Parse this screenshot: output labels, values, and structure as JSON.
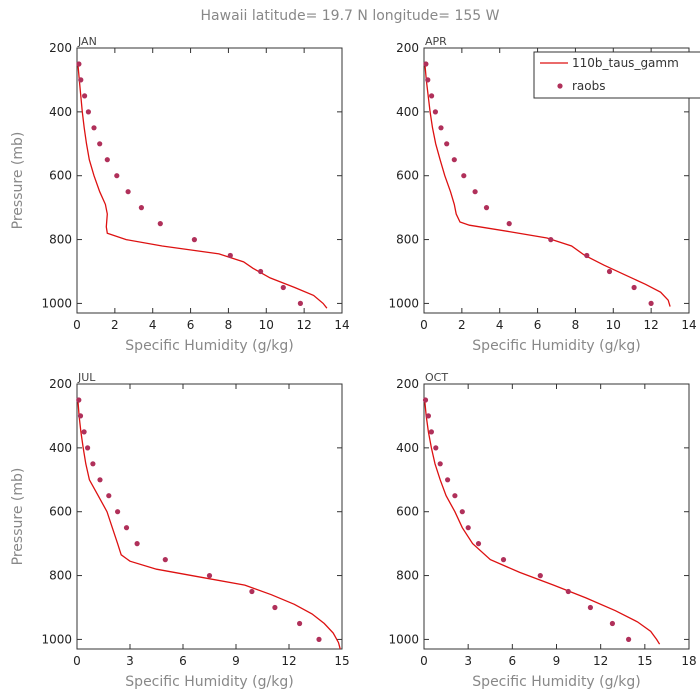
{
  "figure_title": "Hawaii  latitude= 19.7 N longitude= 155 W",
  "colors": {
    "model": "#dd1111",
    "obs": "#b0305a",
    "axis": "#333333",
    "text": "#888888"
  },
  "legend": {
    "model_label": "110b_taus_gamm",
    "obs_label": "raobs",
    "placement": "top-right of APR panel"
  },
  "chart_data": [
    {
      "type": "line",
      "panel_label": "JAN",
      "xlabel": "Specific Humidity (g/kg)",
      "ylabel": "Pressure (mb)",
      "xlim": [
        0,
        14
      ],
      "xticks": [
        0,
        2,
        4,
        6,
        8,
        10,
        12,
        14
      ],
      "ylim": [
        200,
        1030
      ],
      "yticks": [
        200,
        400,
        600,
        800,
        1000
      ],
      "y_inverted": true,
      "series": [
        {
          "name": "110b_taus_gamm",
          "kind": "line",
          "points": [
            [
              0.05,
              250
            ],
            [
              0.12,
              300
            ],
            [
              0.2,
              350
            ],
            [
              0.28,
              400
            ],
            [
              0.38,
              450
            ],
            [
              0.5,
              500
            ],
            [
              0.65,
              550
            ],
            [
              0.9,
              600
            ],
            [
              1.2,
              650
            ],
            [
              1.5,
              690
            ],
            [
              1.6,
              720
            ],
            [
              1.55,
              760
            ],
            [
              1.6,
              780
            ],
            [
              2.6,
              800
            ],
            [
              4.5,
              820
            ],
            [
              7.5,
              845
            ],
            [
              8.8,
              870
            ],
            [
              9.3,
              890
            ],
            [
              10.2,
              920
            ],
            [
              11.5,
              950
            ],
            [
              12.5,
              975
            ],
            [
              13.0,
              1000
            ],
            [
              13.2,
              1015
            ]
          ]
        },
        {
          "name": "raobs",
          "kind": "scatter",
          "points": [
            [
              0.1,
              250
            ],
            [
              0.2,
              300
            ],
            [
              0.4,
              350
            ],
            [
              0.6,
              400
            ],
            [
              0.9,
              450
            ],
            [
              1.2,
              500
            ],
            [
              1.6,
              550
            ],
            [
              2.1,
              600
            ],
            [
              2.7,
              650
            ],
            [
              3.4,
              700
            ],
            [
              4.4,
              750
            ],
            [
              6.2,
              800
            ],
            [
              8.1,
              850
            ],
            [
              9.7,
              900
            ],
            [
              10.9,
              950
            ],
            [
              11.8,
              1000
            ]
          ]
        }
      ]
    },
    {
      "type": "line",
      "panel_label": "APR",
      "xlabel": "Specific Humidity (g/kg)",
      "ylabel": "",
      "xlim": [
        0,
        14
      ],
      "xticks": [
        0,
        2,
        4,
        6,
        8,
        10,
        12,
        14
      ],
      "ylim": [
        200,
        1030
      ],
      "yticks": [
        200,
        400,
        600,
        800,
        1000
      ],
      "y_inverted": true,
      "series": [
        {
          "name": "110b_taus_gamm",
          "kind": "line",
          "points": [
            [
              0.05,
              250
            ],
            [
              0.12,
              300
            ],
            [
              0.22,
              350
            ],
            [
              0.32,
              400
            ],
            [
              0.45,
              450
            ],
            [
              0.62,
              500
            ],
            [
              0.85,
              550
            ],
            [
              1.1,
              600
            ],
            [
              1.4,
              650
            ],
            [
              1.6,
              690
            ],
            [
              1.7,
              720
            ],
            [
              1.9,
              745
            ],
            [
              2.4,
              755
            ],
            [
              4.5,
              775
            ],
            [
              6.5,
              795
            ],
            [
              7.8,
              820
            ],
            [
              8.5,
              850
            ],
            [
              9.5,
              880
            ],
            [
              10.6,
              910
            ],
            [
              11.7,
              940
            ],
            [
              12.5,
              965
            ],
            [
              12.9,
              990
            ],
            [
              13.0,
              1010
            ]
          ]
        },
        {
          "name": "raobs",
          "kind": "scatter",
          "points": [
            [
              0.1,
              250
            ],
            [
              0.2,
              300
            ],
            [
              0.4,
              350
            ],
            [
              0.6,
              400
            ],
            [
              0.9,
              450
            ],
            [
              1.2,
              500
            ],
            [
              1.6,
              550
            ],
            [
              2.1,
              600
            ],
            [
              2.7,
              650
            ],
            [
              3.3,
              700
            ],
            [
              4.5,
              750
            ],
            [
              6.7,
              800
            ],
            [
              8.6,
              850
            ],
            [
              9.8,
              900
            ],
            [
              11.1,
              950
            ],
            [
              12.0,
              1000
            ]
          ]
        }
      ]
    },
    {
      "type": "line",
      "panel_label": "JUL",
      "xlabel": "Specific Humidity (g/kg)",
      "ylabel": "Pressure (mb)",
      "xlim": [
        0,
        15
      ],
      "xticks": [
        0,
        3,
        6,
        9,
        12,
        15
      ],
      "ylim": [
        200,
        1030
      ],
      "yticks": [
        200,
        400,
        600,
        800,
        1000
      ],
      "y_inverted": true,
      "series": [
        {
          "name": "110b_taus_gamm",
          "kind": "line",
          "points": [
            [
              0.05,
              250
            ],
            [
              0.12,
              300
            ],
            [
              0.22,
              350
            ],
            [
              0.35,
              400
            ],
            [
              0.5,
              450
            ],
            [
              0.7,
              500
            ],
            [
              1.2,
              550
            ],
            [
              1.7,
              600
            ],
            [
              2.0,
              650
            ],
            [
              2.3,
              700
            ],
            [
              2.5,
              735
            ],
            [
              3.0,
              755
            ],
            [
              4.5,
              780
            ],
            [
              7.0,
              805
            ],
            [
              9.5,
              830
            ],
            [
              11.0,
              860
            ],
            [
              12.3,
              890
            ],
            [
              13.3,
              920
            ],
            [
              14.0,
              950
            ],
            [
              14.5,
              980
            ],
            [
              14.8,
              1010
            ],
            [
              14.9,
              1030
            ]
          ]
        },
        {
          "name": "raobs",
          "kind": "scatter",
          "points": [
            [
              0.1,
              250
            ],
            [
              0.2,
              300
            ],
            [
              0.4,
              350
            ],
            [
              0.6,
              400
            ],
            [
              0.9,
              450
            ],
            [
              1.3,
              500
            ],
            [
              1.8,
              550
            ],
            [
              2.3,
              600
            ],
            [
              2.8,
              650
            ],
            [
              3.4,
              700
            ],
            [
              5.0,
              750
            ],
            [
              7.5,
              800
            ],
            [
              9.9,
              850
            ],
            [
              11.2,
              900
            ],
            [
              12.6,
              950
            ],
            [
              13.7,
              1000
            ]
          ]
        }
      ]
    },
    {
      "type": "line",
      "panel_label": "OCT",
      "xlabel": "Specific Humidity (g/kg)",
      "ylabel": "",
      "xlim": [
        0,
        18
      ],
      "xticks": [
        0,
        3,
        6,
        9,
        12,
        15,
        18
      ],
      "ylim": [
        200,
        1030
      ],
      "yticks": [
        200,
        400,
        600,
        800,
        1000
      ],
      "y_inverted": true,
      "series": [
        {
          "name": "110b_taus_gamm",
          "kind": "line",
          "points": [
            [
              0.05,
              250
            ],
            [
              0.15,
              300
            ],
            [
              0.3,
              350
            ],
            [
              0.5,
              400
            ],
            [
              0.75,
              450
            ],
            [
              1.1,
              500
            ],
            [
              1.5,
              550
            ],
            [
              2.1,
              600
            ],
            [
              2.6,
              650
            ],
            [
              3.3,
              700
            ],
            [
              4.5,
              750
            ],
            [
              6.5,
              790
            ],
            [
              8.8,
              830
            ],
            [
              11.0,
              870
            ],
            [
              13.0,
              910
            ],
            [
              14.5,
              945
            ],
            [
              15.4,
              975
            ],
            [
              15.8,
              1000
            ],
            [
              16.0,
              1015
            ]
          ]
        },
        {
          "name": "raobs",
          "kind": "scatter",
          "points": [
            [
              0.1,
              250
            ],
            [
              0.3,
              300
            ],
            [
              0.5,
              350
            ],
            [
              0.8,
              400
            ],
            [
              1.1,
              450
            ],
            [
              1.6,
              500
            ],
            [
              2.1,
              550
            ],
            [
              2.6,
              600
            ],
            [
              3.0,
              650
            ],
            [
              3.7,
              700
            ],
            [
              5.4,
              750
            ],
            [
              7.9,
              800
            ],
            [
              9.8,
              850
            ],
            [
              11.3,
              900
            ],
            [
              12.8,
              950
            ],
            [
              13.9,
              1000
            ]
          ]
        }
      ]
    }
  ]
}
